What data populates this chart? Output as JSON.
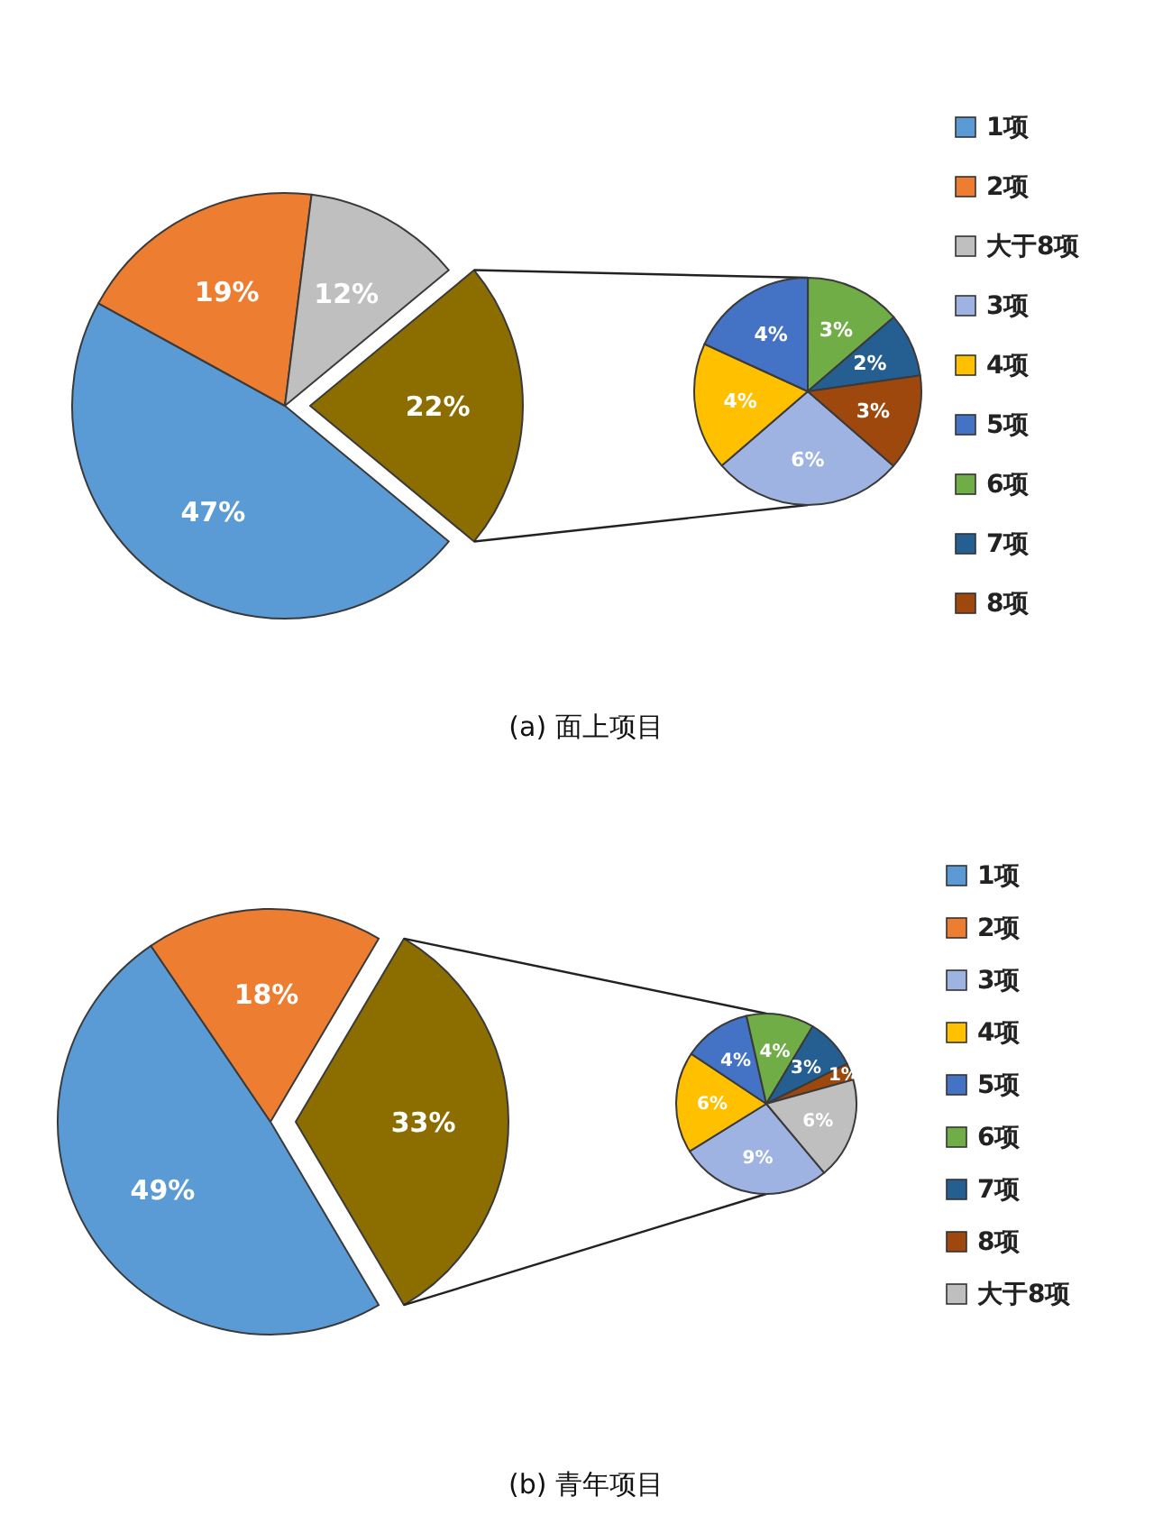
{
  "chart_data": [
    {
      "type": "pie",
      "title": "(a) 面上项目",
      "categories": [
        "1项",
        "2项",
        "大于8项",
        null
      ],
      "values": [
        47,
        19,
        12,
        22
      ],
      "colors": [
        "#5b9bd5",
        "#ed7d31",
        "#bfbfbf",
        "#8c6d00"
      ],
      "value_labels": [
        "47%",
        "19%",
        "12%",
        "22%"
      ],
      "legend": "right"
    },
    {
      "type": "pie",
      "categories": [
        "3项",
        "4项",
        "5项",
        "6项",
        "7项",
        "8项"
      ],
      "values": [
        6,
        4,
        4,
        3,
        2,
        3
      ],
      "colors": [
        "#9fb3e2",
        "#ffc000",
        "#4472c4",
        "#70ad47",
        "#255e91",
        "#9e480e"
      ],
      "value_labels": [
        "6%",
        "4%",
        "4%",
        "3%",
        "2%",
        "3%"
      ]
    },
    {
      "type": "pie",
      "title": "(b) 青年项目",
      "categories": [
        "1项",
        "2项",
        null
      ],
      "values": [
        49,
        18,
        33
      ],
      "colors": [
        "#5b9bd5",
        "#ed7d31",
        "#8c6d00"
      ],
      "value_labels": [
        "49%",
        "18%",
        "33%"
      ],
      "legend": "right"
    },
    {
      "type": "pie",
      "categories": [
        "3项",
        "4项",
        "5项",
        "6项",
        "7项",
        "8项",
        "大于8项"
      ],
      "values": [
        9,
        6,
        4,
        4,
        3,
        1,
        6
      ],
      "colors": [
        "#9fb3e2",
        "#ffc000",
        "#4472c4",
        "#70ad47",
        "#255e91",
        "#9e480e",
        "#bfbfbf"
      ],
      "value_labels": [
        "9%",
        "6%",
        "4%",
        "4%",
        "3%",
        "1%",
        "6%"
      ]
    }
  ]
}
